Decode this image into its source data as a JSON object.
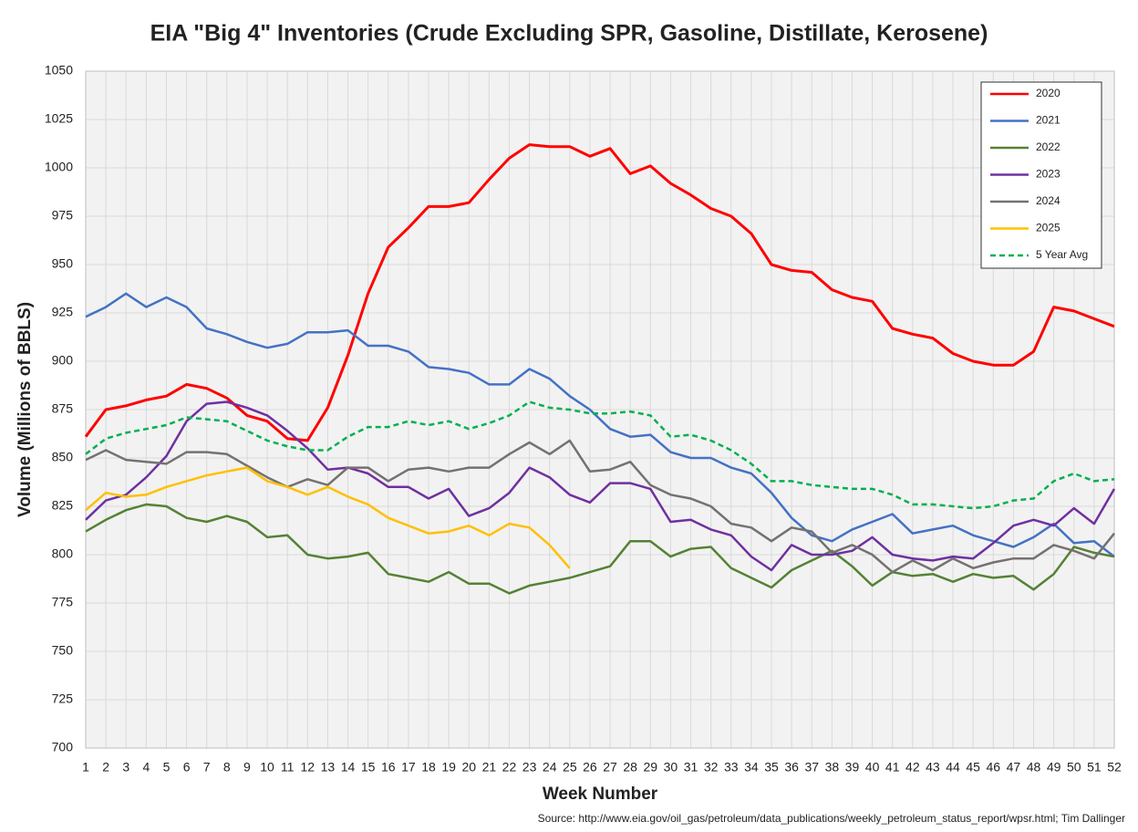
{
  "chart_data": {
    "type": "line",
    "title": "EIA \"Big 4\" Inventories (Crude Excluding SPR, Gasoline, Distillate, Kerosene)",
    "x_label": "Week Number",
    "y_label": "Volume (Millions of BBLS)",
    "source": "Source: http://www.eia.gov/oil_gas/petroleum/data_publications/weekly_petroleum_status_report/wpsr.html; Tim Dallinger",
    "x": [
      1,
      2,
      3,
      4,
      5,
      6,
      7,
      8,
      9,
      10,
      11,
      12,
      13,
      14,
      15,
      16,
      17,
      18,
      19,
      20,
      21,
      22,
      23,
      24,
      25,
      26,
      27,
      28,
      29,
      30,
      31,
      32,
      33,
      34,
      35,
      36,
      37,
      38,
      39,
      40,
      41,
      42,
      43,
      44,
      45,
      46,
      47,
      48,
      49,
      50,
      51,
      52
    ],
    "xlim": [
      1,
      52
    ],
    "xticks": [
      1,
      2,
      3,
      4,
      5,
      6,
      7,
      8,
      9,
      10,
      11,
      12,
      13,
      14,
      15,
      16,
      17,
      18,
      19,
      20,
      21,
      22,
      23,
      24,
      25,
      26,
      27,
      28,
      29,
      30,
      31,
      32,
      33,
      34,
      35,
      36,
      37,
      38,
      39,
      40,
      41,
      42,
      43,
      44,
      45,
      46,
      47,
      48,
      49,
      50,
      51,
      52
    ],
    "ylim": [
      700,
      1050
    ],
    "yticks": [
      700,
      725,
      750,
      775,
      800,
      825,
      850,
      875,
      900,
      925,
      950,
      975,
      1000,
      1025,
      1050
    ],
    "grid": true,
    "legend": "top-right",
    "series": [
      {
        "name": "2020",
        "color": "#ff0000",
        "values": [
          861,
          875,
          877,
          880,
          882,
          888,
          886,
          881,
          872,
          869,
          860,
          859,
          876,
          903,
          935,
          959,
          969,
          980,
          980,
          982,
          994,
          1005,
          1012,
          1011,
          1011,
          1006,
          1010,
          997,
          1001,
          992,
          986,
          979,
          975,
          966,
          950,
          947,
          946,
          937,
          933,
          931,
          917,
          914,
          912,
          904,
          900,
          898,
          898,
          905,
          928,
          926,
          922,
          918
        ]
      },
      {
        "name": "2021",
        "color": "#4472c4",
        "values": [
          923,
          928,
          935,
          928,
          933,
          928,
          917,
          914,
          910,
          907,
          909,
          915,
          915,
          916,
          908,
          908,
          905,
          897,
          896,
          894,
          888,
          888,
          896,
          891,
          882,
          875,
          865,
          861,
          862,
          853,
          850,
          850,
          845,
          842,
          832,
          819,
          810,
          807,
          813,
          817,
          821,
          811,
          813,
          815,
          810,
          807,
          804,
          809,
          816,
          806,
          807,
          799
        ]
      },
      {
        "name": "2022",
        "color": "#548235",
        "values": [
          812,
          818,
          823,
          826,
          825,
          819,
          817,
          820,
          817,
          809,
          810,
          800,
          798,
          799,
          801,
          790,
          788,
          786,
          791,
          785,
          785,
          780,
          784,
          786,
          788,
          791,
          794,
          807,
          807,
          799,
          803,
          804,
          793,
          788,
          783,
          792,
          797,
          802,
          794,
          784,
          791,
          789,
          790,
          786,
          790,
          788,
          789,
          782,
          790,
          804,
          801,
          799
        ]
      },
      {
        "name": "2023",
        "color": "#7030a0",
        "values": [
          818,
          828,
          831,
          840,
          851,
          869,
          878,
          879,
          876,
          872,
          864,
          855,
          844,
          845,
          842,
          835,
          835,
          829,
          834,
          820,
          824,
          832,
          845,
          840,
          831,
          827,
          837,
          837,
          834,
          817,
          818,
          813,
          810,
          799,
          792,
          805,
          800,
          800,
          802,
          809,
          800,
          798,
          797,
          799,
          798,
          806,
          815,
          818,
          815,
          824,
          816,
          834
        ]
      },
      {
        "name": "2024",
        "color": "#767171",
        "values": [
          849,
          854,
          849,
          848,
          847,
          853,
          853,
          852,
          846,
          840,
          835,
          839,
          836,
          845,
          845,
          838,
          844,
          845,
          843,
          845,
          845,
          852,
          858,
          852,
          859,
          843,
          844,
          848,
          836,
          831,
          829,
          825,
          816,
          814,
          807,
          814,
          812,
          801,
          805,
          800,
          791,
          797,
          792,
          798,
          793,
          796,
          798,
          798,
          805,
          802,
          798,
          811
        ]
      },
      {
        "name": "2025",
        "color": "#ffc000",
        "values": [
          823,
          832,
          830,
          831,
          835,
          838,
          841,
          843,
          845,
          838,
          835,
          831,
          835,
          830,
          826,
          819,
          815,
          811,
          812,
          815,
          810,
          816,
          814,
          805,
          793,
          null,
          null,
          null,
          null,
          null,
          null,
          null,
          null,
          null,
          null,
          null,
          null,
          null,
          null,
          null,
          null,
          null,
          null,
          null,
          null,
          null,
          null,
          null,
          null,
          null,
          null,
          null
        ]
      },
      {
        "name": "5 Year Avg",
        "color": "#00b050",
        "dashed": true,
        "values": [
          852,
          860,
          863,
          865,
          867,
          871,
          870,
          869,
          864,
          859,
          856,
          854,
          854,
          861,
          866,
          866,
          869,
          867,
          869,
          865,
          868,
          872,
          879,
          876,
          875,
          873,
          873,
          874,
          872,
          861,
          862,
          859,
          854,
          847,
          838,
          838,
          836,
          835,
          834,
          834,
          831,
          826,
          826,
          825,
          824,
          825,
          828,
          829,
          838,
          842,
          838,
          839
        ]
      }
    ]
  }
}
